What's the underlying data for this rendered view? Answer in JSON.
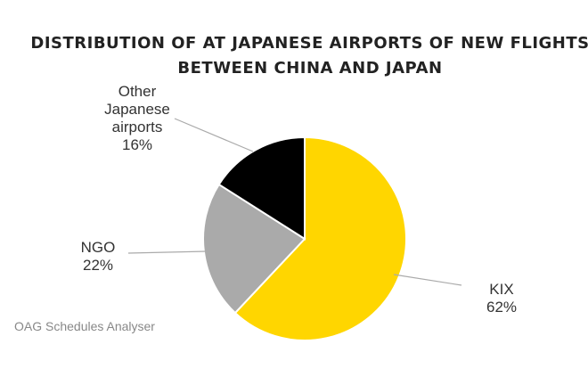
{
  "chart_data": {
    "type": "pie",
    "title_lines": [
      "DISTRIBUTION OF AT JAPANESE AIRPORTS OF NEW FLIGHTS",
      "BETWEEN CHINA AND JAPAN"
    ],
    "slices": [
      {
        "label_lines": [
          "KIX"
        ],
        "value": 62,
        "pct_text": "62%",
        "color": "#FFD600"
      },
      {
        "label_lines": [
          "NGO"
        ],
        "value": 22,
        "pct_text": "22%",
        "color": "#AAAAAA"
      },
      {
        "label_lines": [
          "Other",
          "Japanese",
          "airports"
        ],
        "value": 16,
        "pct_text": "16%",
        "color": "#000000"
      }
    ],
    "start_angle_deg": 0,
    "direction": "clockwise",
    "legend": "none"
  },
  "source": "OAG Schedules Analyser"
}
